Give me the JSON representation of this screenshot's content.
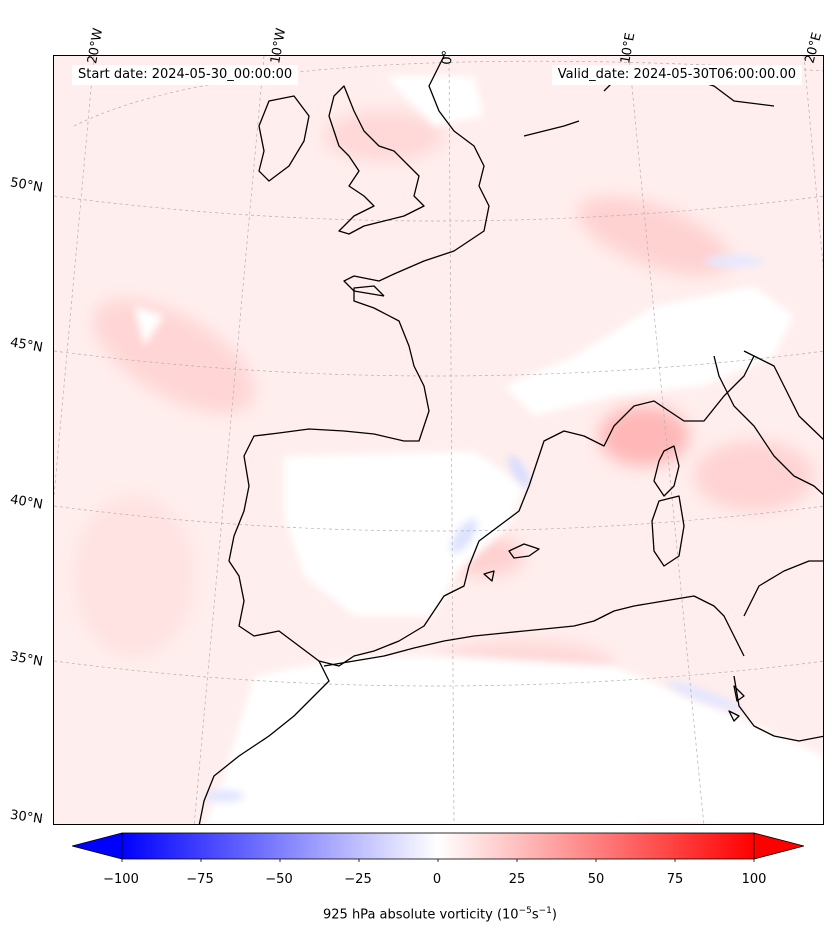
{
  "map": {
    "start_date": "Start date: 2024-05-30_00:00:00",
    "valid_date": "Valid_date: 2024-05-30T06:00:00.00",
    "lon_labels": [
      "20°W",
      "10°W",
      "0°",
      "10°E",
      "20°E"
    ],
    "lat_labels": [
      "50°N",
      "45°N",
      "40°N",
      "35°N",
      "30°N"
    ]
  },
  "colorbar": {
    "ticks": [
      "−100",
      "−75",
      "−50",
      "−25",
      "0",
      "25",
      "50",
      "75",
      "100"
    ],
    "label_main": "925 hPa absolute vorticity (10",
    "label_exp1": "−5",
    "label_mid": "s",
    "label_exp2": "−1",
    "label_end": ")",
    "min": -100,
    "max": 100,
    "colors": {
      "negative": "#0000ff",
      "zero": "#ffffff",
      "positive": "#ff0000"
    }
  },
  "colors": {
    "coastline": "#000000",
    "gridline": "#b0b0b0",
    "background": "#fff0ef"
  }
}
